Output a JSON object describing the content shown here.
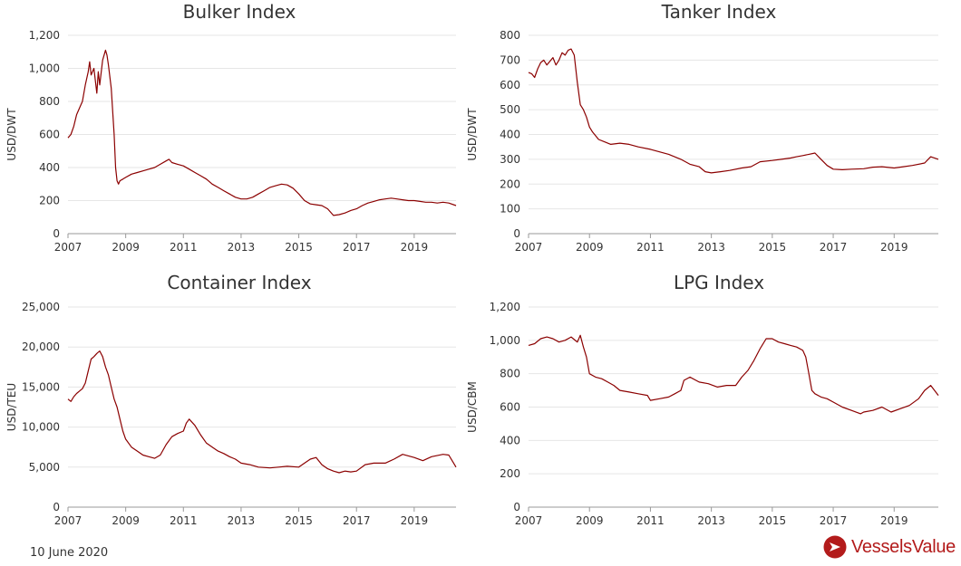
{
  "footer": {
    "date": "10 June 2020",
    "brand": "VesselsValue"
  },
  "colors": {
    "series": "#8b0000",
    "grid": "#e6e6e6",
    "brand": "#b31b1b"
  },
  "chart_data": [
    {
      "type": "line",
      "title": "Bulker Index",
      "ylabel": "USD/DWT",
      "xlabel": "",
      "xlim": [
        2007,
        2020.45
      ],
      "ylim": [
        0,
        1200
      ],
      "xticks": [
        2007,
        2009,
        2011,
        2013,
        2015,
        2017,
        2019
      ],
      "xtick_labels": [
        "2007",
        "2009",
        "2011",
        "2013",
        "2015",
        "2017",
        "2019"
      ],
      "yticks": [
        0,
        200,
        400,
        600,
        800,
        1000,
        1200
      ],
      "ytick_labels": [
        "0",
        "200",
        "400",
        "600",
        "800",
        "1,000",
        "1,200"
      ],
      "grid": true,
      "series": [
        {
          "x": [
            2007.0,
            2007.1,
            2007.2,
            2007.3,
            2007.4,
            2007.5,
            2007.6,
            2007.7,
            2007.75,
            2007.8,
            2007.9,
            2008.0,
            2008.05,
            2008.1,
            2008.2,
            2008.3,
            2008.35,
            2008.4,
            2008.5,
            2008.6,
            2008.65,
            2008.7,
            2008.75,
            2008.8,
            2008.9,
            2009.0,
            2009.2,
            2009.4,
            2009.6,
            2009.8,
            2010.0,
            2010.2,
            2010.4,
            2010.5,
            2010.6,
            2010.8,
            2011.0,
            2011.2,
            2011.4,
            2011.6,
            2011.8,
            2012.0,
            2012.2,
            2012.4,
            2012.6,
            2012.8,
            2013.0,
            2013.2,
            2013.4,
            2013.6,
            2013.8,
            2014.0,
            2014.2,
            2014.4,
            2014.6,
            2014.8,
            2015.0,
            2015.2,
            2015.4,
            2015.6,
            2015.8,
            2016.0,
            2016.2,
            2016.4,
            2016.6,
            2016.8,
            2017.0,
            2017.2,
            2017.4,
            2017.6,
            2017.8,
            2018.0,
            2018.2,
            2018.4,
            2018.6,
            2018.8,
            2019.0,
            2019.2,
            2019.4,
            2019.6,
            2019.8,
            2020.0,
            2020.2,
            2020.45
          ],
          "y": [
            580,
            600,
            650,
            720,
            760,
            800,
            900,
            980,
            1040,
            960,
            1000,
            850,
            980,
            900,
            1050,
            1110,
            1080,
            1020,
            880,
            600,
            400,
            320,
            300,
            320,
            330,
            340,
            360,
            370,
            380,
            390,
            400,
            420,
            440,
            450,
            430,
            420,
            410,
            390,
            370,
            350,
            330,
            300,
            280,
            260,
            240,
            220,
            210,
            210,
            220,
            240,
            260,
            280,
            290,
            300,
            295,
            275,
            240,
            200,
            180,
            175,
            170,
            150,
            110,
            115,
            125,
            140,
            150,
            170,
            185,
            195,
            205,
            210,
            215,
            210,
            205,
            200,
            200,
            195,
            190,
            190,
            185,
            190,
            185,
            170
          ]
        }
      ]
    },
    {
      "type": "line",
      "title": "Tanker Index",
      "ylabel": "USD/DWT",
      "xlabel": "",
      "xlim": [
        2007,
        2020.45
      ],
      "ylim": [
        0,
        800
      ],
      "xticks": [
        2007,
        2009,
        2011,
        2013,
        2015,
        2017,
        2019
      ],
      "xtick_labels": [
        "2007",
        "2009",
        "2011",
        "2013",
        "2015",
        "2017",
        "2019"
      ],
      "yticks": [
        0,
        100,
        200,
        300,
        400,
        500,
        600,
        700,
        800
      ],
      "ytick_labels": [
        "0",
        "100",
        "200",
        "300",
        "400",
        "500",
        "600",
        "700",
        "800"
      ],
      "grid": true,
      "series": [
        {
          "x": [
            2007.0,
            2007.1,
            2007.2,
            2007.3,
            2007.4,
            2007.5,
            2007.6,
            2007.7,
            2007.8,
            2007.9,
            2008.0,
            2008.1,
            2008.2,
            2008.3,
            2008.4,
            2008.5,
            2008.6,
            2008.7,
            2008.8,
            2008.9,
            2009.0,
            2009.1,
            2009.3,
            2009.5,
            2009.7,
            2010.0,
            2010.3,
            2010.6,
            2011.0,
            2011.3,
            2011.6,
            2012.0,
            2012.3,
            2012.6,
            2012.8,
            2013.0,
            2013.3,
            2013.6,
            2014.0,
            2014.3,
            2014.6,
            2015.0,
            2015.3,
            2015.6,
            2015.8,
            2016.0,
            2016.2,
            2016.4,
            2016.6,
            2016.8,
            2017.0,
            2017.3,
            2017.6,
            2018.0,
            2018.3,
            2018.6,
            2019.0,
            2019.3,
            2019.6,
            2020.0,
            2020.2,
            2020.45
          ],
          "y": [
            650,
            645,
            630,
            665,
            690,
            700,
            680,
            695,
            710,
            680,
            700,
            730,
            720,
            740,
            745,
            720,
            610,
            520,
            500,
            470,
            430,
            410,
            380,
            370,
            360,
            365,
            360,
            350,
            340,
            330,
            320,
            300,
            280,
            270,
            250,
            245,
            250,
            255,
            265,
            270,
            290,
            295,
            300,
            305,
            310,
            315,
            320,
            325,
            300,
            275,
            260,
            258,
            260,
            262,
            268,
            270,
            265,
            270,
            275,
            285,
            310,
            300
          ]
        }
      ]
    },
    {
      "type": "line",
      "title": "Container Index",
      "ylabel": "USD/TEU",
      "xlabel": "",
      "xlim": [
        2007,
        2020.45
      ],
      "ylim": [
        0,
        25000
      ],
      "xticks": [
        2007,
        2009,
        2011,
        2013,
        2015,
        2017,
        2019
      ],
      "xtick_labels": [
        "2007",
        "2009",
        "2011",
        "2013",
        "2015",
        "2017",
        "2019"
      ],
      "yticks": [
        0,
        5000,
        10000,
        15000,
        20000,
        25000
      ],
      "ytick_labels": [
        "0",
        "5,000",
        "10,000",
        "15,000",
        "20,000",
        "25,000"
      ],
      "grid": true,
      "series": [
        {
          "x": [
            2007.0,
            2007.1,
            2007.2,
            2007.3,
            2007.4,
            2007.5,
            2007.6,
            2007.7,
            2007.8,
            2007.9,
            2008.0,
            2008.1,
            2008.2,
            2008.3,
            2008.4,
            2008.5,
            2008.6,
            2008.7,
            2008.8,
            2008.9,
            2009.0,
            2009.2,
            2009.4,
            2009.6,
            2009.8,
            2010.0,
            2010.2,
            2010.4,
            2010.6,
            2010.8,
            2011.0,
            2011.1,
            2011.2,
            2011.4,
            2011.6,
            2011.8,
            2012.0,
            2012.2,
            2012.4,
            2012.6,
            2012.8,
            2013.0,
            2013.3,
            2013.6,
            2014.0,
            2014.3,
            2014.6,
            2015.0,
            2015.2,
            2015.4,
            2015.6,
            2015.8,
            2016.0,
            2016.2,
            2016.4,
            2016.6,
            2016.8,
            2017.0,
            2017.3,
            2017.6,
            2018.0,
            2018.3,
            2018.6,
            2019.0,
            2019.3,
            2019.6,
            2020.0,
            2020.2,
            2020.45
          ],
          "y": [
            13500,
            13200,
            13800,
            14200,
            14500,
            14800,
            15500,
            17000,
            18500,
            18800,
            19200,
            19500,
            18800,
            17500,
            16500,
            15000,
            13500,
            12500,
            11000,
            9500,
            8500,
            7500,
            7000,
            6500,
            6300,
            6100,
            6500,
            7800,
            8800,
            9200,
            9500,
            10500,
            11000,
            10200,
            9000,
            8000,
            7500,
            7000,
            6700,
            6300,
            6000,
            5500,
            5300,
            5000,
            4900,
            5000,
            5100,
            5000,
            5500,
            6000,
            6200,
            5300,
            4800,
            4500,
            4300,
            4500,
            4400,
            4500,
            5300,
            5500,
            5500,
            6000,
            6600,
            6200,
            5800,
            6300,
            6600,
            6500,
            5000
          ]
        }
      ]
    },
    {
      "type": "line",
      "title": "LPG Index",
      "ylabel": "USD/CBM",
      "xlabel": "",
      "xlim": [
        2007,
        2020.45
      ],
      "ylim": [
        0,
        1200
      ],
      "xticks": [
        2007,
        2009,
        2011,
        2013,
        2015,
        2017,
        2019
      ],
      "xtick_labels": [
        "2007",
        "2009",
        "2011",
        "2013",
        "2015",
        "2017",
        "2019"
      ],
      "yticks": [
        0,
        200,
        400,
        600,
        800,
        1000,
        1200
      ],
      "ytick_labels": [
        "0",
        "200",
        "400",
        "600",
        "800",
        "1,000",
        "1,200"
      ],
      "grid": true,
      "series": [
        {
          "x": [
            2007.0,
            2007.2,
            2007.4,
            2007.6,
            2007.8,
            2008.0,
            2008.2,
            2008.4,
            2008.6,
            2008.7,
            2008.8,
            2008.9,
            2009.0,
            2009.2,
            2009.4,
            2009.6,
            2009.8,
            2010.0,
            2010.3,
            2010.6,
            2010.9,
            2011.0,
            2011.3,
            2011.6,
            2011.8,
            2012.0,
            2012.1,
            2012.3,
            2012.6,
            2012.9,
            2013.2,
            2013.5,
            2013.8,
            2014.0,
            2014.2,
            2014.4,
            2014.6,
            2014.8,
            2015.0,
            2015.2,
            2015.4,
            2015.6,
            2015.8,
            2016.0,
            2016.1,
            2016.2,
            2016.3,
            2016.4,
            2016.6,
            2016.8,
            2017.0,
            2017.3,
            2017.6,
            2017.9,
            2018.0,
            2018.3,
            2018.6,
            2018.9,
            2019.2,
            2019.5,
            2019.8,
            2020.0,
            2020.2,
            2020.45
          ],
          "y": [
            970,
            980,
            1010,
            1020,
            1010,
            990,
            1000,
            1020,
            990,
            1030,
            960,
            900,
            800,
            780,
            770,
            750,
            730,
            700,
            690,
            680,
            670,
            640,
            650,
            660,
            680,
            700,
            760,
            780,
            750,
            740,
            720,
            730,
            730,
            780,
            820,
            880,
            950,
            1010,
            1010,
            990,
            980,
            970,
            960,
            940,
            900,
            800,
            700,
            680,
            660,
            650,
            630,
            600,
            580,
            560,
            570,
            580,
            600,
            570,
            590,
            610,
            650,
            700,
            730,
            670
          ]
        }
      ]
    }
  ]
}
